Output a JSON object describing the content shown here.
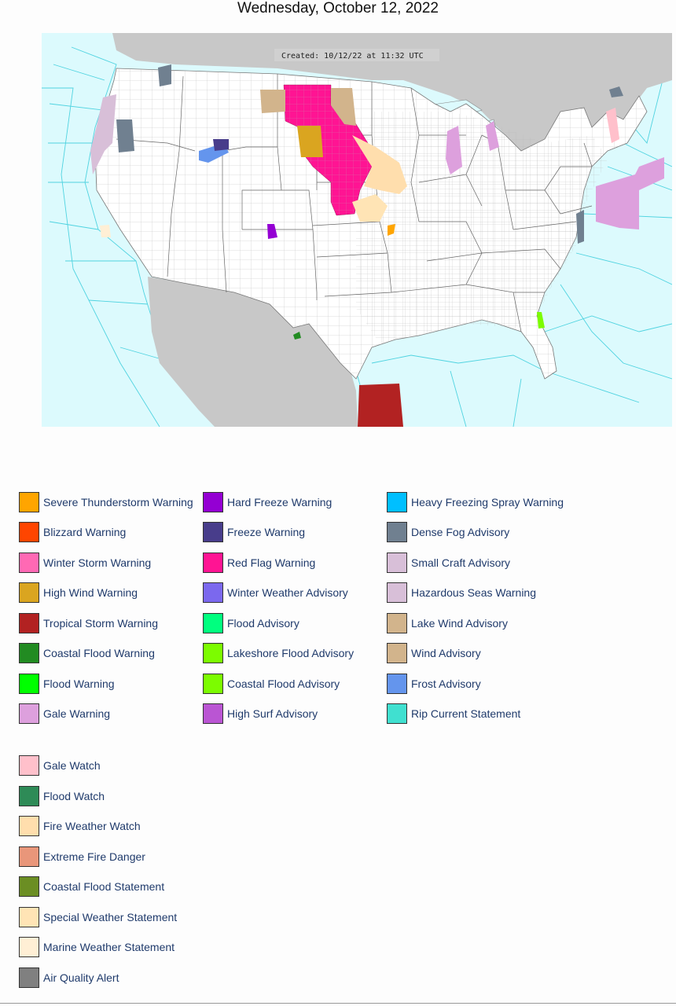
{
  "page": {
    "title": "Wednesday, October 12, 2022"
  },
  "map": {
    "created_text": "Created: 10/12/22 at 11:32 UTC",
    "colors": {
      "ocean": "#dcfafd",
      "land_outside": "#c8c8c8",
      "land_us": "#ffffff",
      "county_lines": "#aaaaaa",
      "marine_zone_lines": "#4fd3e0"
    }
  },
  "legend": {
    "warnings": [
      {
        "label": "Severe Thunderstorm Warning",
        "color": "#FFA500"
      },
      {
        "label": "Blizzard Warning",
        "color": "#FF4500"
      },
      {
        "label": "Winter Storm Warning",
        "color": "#FF69B4"
      },
      {
        "label": "High Wind Warning",
        "color": "#DAA520"
      },
      {
        "label": "Tropical Storm Warning",
        "color": "#B22222"
      },
      {
        "label": "Coastal Flood Warning",
        "color": "#228B22"
      },
      {
        "label": "Flood Warning",
        "color": "#00FF00"
      },
      {
        "label": "Gale Warning",
        "color": "#DDA0DD"
      },
      {
        "label": "Hard Freeze Warning",
        "color": "#9400D3"
      },
      {
        "label": "Freeze Warning",
        "color": "#483D8B"
      },
      {
        "label": "Red Flag Warning",
        "color": "#FF1493"
      },
      {
        "label": "Winter Weather Advisory",
        "color": "#7B68EE"
      },
      {
        "label": "Flood Advisory",
        "color": "#00FF7F"
      },
      {
        "label": "Lakeshore Flood Advisory",
        "color": "#7CFC00"
      },
      {
        "label": "Coastal Flood Advisory",
        "color": "#7CFC00"
      },
      {
        "label": "High Surf Advisory",
        "color": "#BA55D3"
      },
      {
        "label": "Heavy Freezing Spray Warning",
        "color": "#00BFFF"
      },
      {
        "label": "Dense Fog Advisory",
        "color": "#708090"
      },
      {
        "label": "Small Craft Advisory",
        "color": "#D8BFD8"
      },
      {
        "label": "Hazardous Seas Warning",
        "color": "#D8BFD8"
      },
      {
        "label": "Lake Wind Advisory",
        "color": "#D2B48C"
      },
      {
        "label": "Wind Advisory",
        "color": "#D2B48C"
      },
      {
        "label": "Frost Advisory",
        "color": "#6495ED"
      },
      {
        "label": "Rip Current Statement",
        "color": "#40E0D0"
      }
    ],
    "watches": [
      {
        "label": "Gale Watch",
        "color": "#FFC0CB"
      },
      {
        "label": "Flood Watch",
        "color": "#2E8B57"
      },
      {
        "label": "Fire Weather Watch",
        "color": "#FFDEAD"
      },
      {
        "label": "Extreme Fire Danger",
        "color": "#E9967A"
      },
      {
        "label": "Coastal Flood Statement",
        "color": "#6B8E23"
      },
      {
        "label": "Special Weather Statement",
        "color": "#FFE4B5"
      },
      {
        "label": "Marine Weather Statement",
        "color": "#FFEFD5"
      },
      {
        "label": "Air Quality Alert",
        "color": "#808080"
      }
    ]
  }
}
